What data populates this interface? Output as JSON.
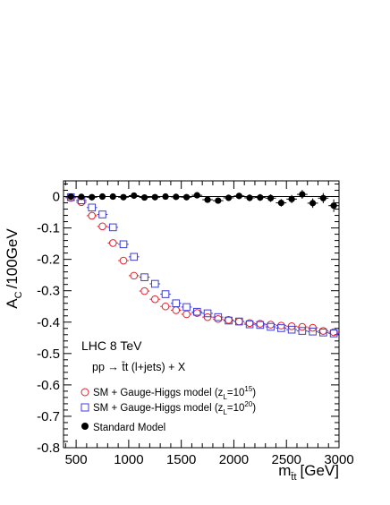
{
  "chart_data": {
    "type": "scatter",
    "xlabel_main": "m",
    "xlabel_sub": "t̄t",
    "xlabel_unit": "[GeV]",
    "ylabel_main": "A",
    "ylabel_sub": "C",
    "ylabel_unit": "/100GeV",
    "xlim": [
      380,
      3000
    ],
    "ylim": [
      -0.8,
      0.05
    ],
    "x_ticks": [
      500,
      1000,
      1500,
      2000,
      2500,
      3000
    ],
    "y_ticks": [
      0,
      -0.1,
      -0.2,
      -0.3,
      -0.4,
      -0.5,
      -0.6,
      -0.7,
      -0.8
    ],
    "x_tick_labels": [
      "500",
      "1000",
      "1500",
      "2000",
      "2500",
      "3000"
    ],
    "y_tick_labels": [
      "0",
      "-0.1",
      "-0.2",
      "-0.3",
      "-0.4",
      "-0.5",
      "-0.6",
      "-0.7",
      "-0.8"
    ],
    "annotations": {
      "line1": "LHC 8 TeV",
      "line2": "pp → t̄t (l+jets) + X"
    },
    "legend_position": "bottom-left",
    "series": [
      {
        "name": "SM + Gauge-Higgs model (z",
        "name_sub": "L",
        "name_eq": "=10",
        "name_sup": "15",
        "name_end": ")",
        "marker": "open-circle",
        "color": "#e8202a",
        "x": [
          450,
          550,
          650,
          750,
          850,
          950,
          1050,
          1150,
          1250,
          1350,
          1450,
          1550,
          1650,
          1750,
          1850,
          1950,
          2050,
          2150,
          2250,
          2350,
          2450,
          2550,
          2650,
          2750,
          2850,
          2950
        ],
        "y": [
          -0.004,
          -0.018,
          -0.061,
          -0.095,
          -0.148,
          -0.204,
          -0.252,
          -0.301,
          -0.327,
          -0.35,
          -0.362,
          -0.375,
          -0.371,
          -0.384,
          -0.39,
          -0.393,
          -0.398,
          -0.403,
          -0.405,
          -0.408,
          -0.411,
          -0.413,
          -0.415,
          -0.418,
          -0.428,
          -0.432
        ]
      },
      {
        "name": "SM + Gauge-Higgs model (z",
        "name_sub": "L",
        "name_eq": "=10",
        "name_sup": "20",
        "name_end": ")",
        "marker": "open-square",
        "color": "#3c3cd6",
        "x": [
          450,
          550,
          650,
          750,
          850,
          950,
          1050,
          1150,
          1250,
          1350,
          1450,
          1550,
          1650,
          1750,
          1850,
          1950,
          2050,
          2150,
          2250,
          2350,
          2450,
          2550,
          2650,
          2750,
          2850,
          2950
        ],
        "y": [
          -0.002,
          -0.012,
          -0.035,
          -0.057,
          -0.098,
          -0.152,
          -0.192,
          -0.257,
          -0.278,
          -0.311,
          -0.34,
          -0.352,
          -0.367,
          -0.372,
          -0.384,
          -0.395,
          -0.398,
          -0.407,
          -0.409,
          -0.415,
          -0.419,
          -0.424,
          -0.428,
          -0.43,
          -0.433,
          -0.436
        ]
      },
      {
        "name": "Standard Model",
        "marker": "filled-circle",
        "color": "#000000",
        "x": [
          450,
          550,
          650,
          750,
          850,
          950,
          1050,
          1150,
          1250,
          1350,
          1450,
          1550,
          1650,
          1750,
          1850,
          1950,
          2050,
          2150,
          2250,
          2350,
          2450,
          2550,
          2650,
          2750,
          2850,
          2950
        ],
        "y": [
          0.0,
          -0.001,
          -0.002,
          0.0,
          0.0,
          -0.002,
          0.003,
          -0.003,
          -0.002,
          0.0,
          -0.001,
          -0.002,
          0.004,
          -0.01,
          -0.013,
          -0.004,
          0.002,
          -0.004,
          -0.003,
          -0.005,
          -0.02,
          -0.008,
          0.007,
          -0.021,
          -0.005,
          -0.029
        ],
        "yerr": [
          0.003,
          0.003,
          0.003,
          0.003,
          0.004,
          0.004,
          0.005,
          0.005,
          0.006,
          0.006,
          0.006,
          0.007,
          0.008,
          0.009,
          0.009,
          0.01,
          0.01,
          0.011,
          0.011,
          0.012,
          0.012,
          0.013,
          0.014,
          0.015,
          0.016,
          0.02
        ]
      }
    ]
  }
}
